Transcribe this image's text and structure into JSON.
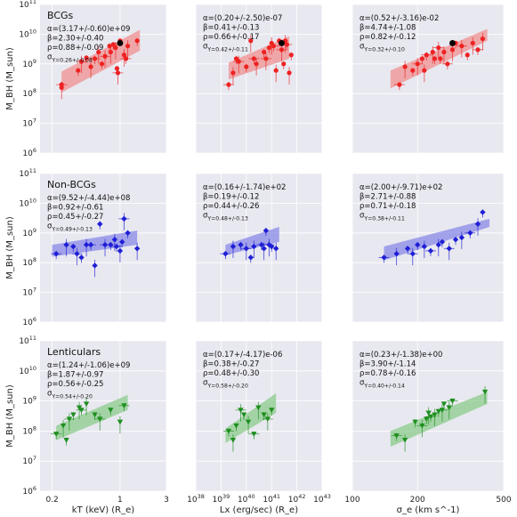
{
  "rows": [
    {
      "label": "BCGs",
      "ylabel": "M_BH (M_sun)",
      "color": "#ee2222",
      "band": "#f09090",
      "marker": "circle"
    },
    {
      "label": "Non-BCGs",
      "ylabel": "M_BH (M_sun)",
      "color": "#1f1fd6",
      "band": "#8a8ae8",
      "marker": "diamond"
    },
    {
      "label": "Lenticulars",
      "ylabel": "M_BH (M_sun)",
      "color": "#1f8f1f",
      "band": "#8ccc8c",
      "marker": "triangle"
    }
  ],
  "columns": [
    {
      "xlabel": "kT (keV) (R_e)",
      "scale": "log",
      "xlim": [
        0.15,
        3
      ],
      "ticks": [
        {
          "v": 0.2,
          "t": "0.2"
        },
        {
          "v": 1,
          "t": "1"
        },
        {
          "v": 3,
          "t": "3"
        }
      ]
    },
    {
      "xlabel": "Lx (erg/sec) (R_e)",
      "scale": "log",
      "xlim": [
        1e+38,
        1e+43
      ],
      "ticks": [
        {
          "v": 1e+38,
          "t": "10^38"
        },
        {
          "v": 1e+39,
          "t": "10^39"
        },
        {
          "v": 1e+40,
          "t": "10^40"
        },
        {
          "v": 1e+41,
          "t": "10^41"
        },
        {
          "v": 1e+42,
          "t": "10^42"
        },
        {
          "v": 1e+43,
          "t": "10^43"
        }
      ]
    },
    {
      "xlabel": "σ_e (km s^-1)",
      "scale": "log",
      "xlim": [
        100,
        500
      ],
      "ticks": [
        {
          "v": 100,
          "t": "100"
        },
        {
          "v": 200,
          "t": "200"
        },
        {
          "v": 500,
          "t": "500"
        }
      ]
    }
  ],
  "y_axis": {
    "scale": "log",
    "ylim": [
      1000000.0,
      100000000000.0
    ],
    "ticks": [
      {
        "v": 1000000.0,
        "t": "10^6"
      },
      {
        "v": 10000000.0,
        "t": "10^7"
      },
      {
        "v": 100000000.0,
        "t": "10^8"
      },
      {
        "v": 1000000000.0,
        "t": "10^9"
      },
      {
        "v": 10000000000.0,
        "t": "10^10"
      },
      {
        "v": 100000000000.0,
        "t": "10^11"
      }
    ]
  },
  "chart_data": [
    {
      "type": "scatter",
      "row": 0,
      "col": 0,
      "annotations": [
        "α=(3.17+/-0.60)e+09",
        "β=2.30+/-0.40",
        "ρ=0.88+/-0.09",
        "σ_Y=0.26+/-0.08"
      ],
      "fit": {
        "x": [
          0.25,
          1.6
        ],
        "y_lo": [
          110000000.0,
          2800000000.0
        ],
        "y_hi": [
          550000000.0,
          14000000000.0
        ]
      },
      "points": [
        [
          0.25,
          200000000.0
        ],
        [
          0.25,
          160000000.0
        ],
        [
          0.37,
          600000000.0
        ],
        [
          0.4,
          1200000000.0
        ],
        [
          0.45,
          1600000000.0
        ],
        [
          0.5,
          800000000.0
        ],
        [
          0.55,
          1500000000.0
        ],
        [
          0.6,
          2500000000.0
        ],
        [
          0.65,
          1000000000.0
        ],
        [
          0.7,
          1800000000.0
        ],
        [
          0.78,
          4000000000.0
        ],
        [
          0.8,
          2500000000.0
        ],
        [
          0.85,
          4500000000.0
        ],
        [
          0.9,
          3500000000.0
        ],
        [
          0.93,
          700000000.0
        ],
        [
          0.95,
          500000000.0
        ],
        [
          1.0,
          6000000000.0
        ],
        [
          1.1,
          2000000000.0
        ],
        [
          1.15,
          1500000000.0
        ],
        [
          1.2,
          4000000000.0
        ],
        [
          1.5,
          6000000000.0
        ]
      ],
      "highlight": [
        [
          1.0,
          5000000000.0
        ]
      ]
    },
    {
      "type": "scatter",
      "row": 0,
      "col": 1,
      "annotations": [
        "α=(0.20+/-2.50)e-07",
        "β=0.41+/-0.13",
        "ρ=0.66+/-0.17",
        "σ_Y=0.42+/-0.11"
      ],
      "fit": {
        "x": [
          2e+39,
          5e+41
        ],
        "y_lo": [
          300000000.0,
          1500000000.0
        ],
        "y_hi": [
          1100000000.0,
          8500000000.0
        ]
      },
      "points": [
        [
          2e+39,
          200000000.0
        ],
        [
          3e+39,
          500000000.0
        ],
        [
          4e+39,
          1500000000.0
        ],
        [
          5e+39,
          1200000000.0
        ],
        [
          1e+40,
          800000000.0
        ],
        [
          1.5e+40,
          6000000000.0
        ],
        [
          2e+40,
          1500000000.0
        ],
        [
          2.5e+40,
          1000000000.0
        ],
        [
          5e+40,
          2500000000.0
        ],
        [
          6e+40,
          1500000000.0
        ],
        [
          8e+40,
          3500000000.0
        ],
        [
          1e+41,
          5000000000.0
        ],
        [
          1.2e+41,
          4000000000.0
        ],
        [
          1.5e+41,
          600000000.0
        ],
        [
          2e+41,
          6000000000.0
        ],
        [
          2.5e+41,
          3000000000.0
        ],
        [
          3e+41,
          1000000000.0
        ],
        [
          3.5e+41,
          6000000000.0
        ],
        [
          4e+41,
          4500000000.0
        ],
        [
          5e+41,
          500000000.0
        ],
        [
          6e+41,
          2000000000.0
        ]
      ],
      "highlight": [
        [
          2.5e+41,
          5000000000.0
        ]
      ]
    },
    {
      "type": "scatter",
      "row": 0,
      "col": 2,
      "annotations": [
        "α=(0.52+/-3.16)e-02",
        "β=4.74+/-1.08",
        "ρ=0.82+/-0.12",
        "σ_Y=0.32+/-0.10"
      ],
      "fit": {
        "x": [
          150,
          420
        ],
        "y_lo": [
          150000000.0,
          6000000000.0
        ],
        "y_hi": [
          600000000.0,
          15000000000.0
        ]
      },
      "points": [
        [
          165,
          200000000.0
        ],
        [
          175,
          800000000.0
        ],
        [
          190,
          600000000.0
        ],
        [
          200,
          1000000000.0
        ],
        [
          210,
          1500000000.0
        ],
        [
          215,
          600000000.0
        ],
        [
          220,
          2000000000.0
        ],
        [
          235,
          2500000000.0
        ],
        [
          240,
          1500000000.0
        ],
        [
          250,
          3500000000.0
        ],
        [
          255,
          1500000000.0
        ],
        [
          265,
          2500000000.0
        ],
        [
          275,
          1000000000.0
        ],
        [
          290,
          3000000000.0
        ],
        [
          300,
          5000000000.0
        ],
        [
          320,
          4000000000.0
        ],
        [
          340,
          2000000000.0
        ],
        [
          360,
          5000000000.0
        ],
        [
          380,
          3000000000.0
        ],
        [
          400,
          7000000000.0
        ]
      ],
      "highlight": [
        [
          290,
          5000000000.0
        ]
      ]
    },
    {
      "type": "scatter",
      "row": 1,
      "col": 0,
      "annotations": [
        "α=(9.52+/-4.44)e+08",
        "β=0.92+/-0.61",
        "ρ=0.45+/-0.27",
        "σ_Y=0.49+/-0.13"
      ],
      "fit": {
        "x": [
          0.2,
          1.5
        ],
        "y_lo": [
          160000000.0,
          400000000.0
        ],
        "y_hi": [
          400000000.0,
          1200000000.0
        ]
      },
      "points": [
        [
          0.22,
          200000000.0
        ],
        [
          0.28,
          400000000.0
        ],
        [
          0.33,
          350000000.0
        ],
        [
          0.36,
          200000000.0
        ],
        [
          0.4,
          150000000.0
        ],
        [
          0.45,
          400000000.0
        ],
        [
          0.5,
          400000000.0
        ],
        [
          0.55,
          80000000.0
        ],
        [
          0.62,
          2000000000.0
        ],
        [
          0.7,
          400000000.0
        ],
        [
          0.8,
          400000000.0
        ],
        [
          0.88,
          600000000.0
        ],
        [
          0.92,
          350000000.0
        ],
        [
          1.0,
          250000000.0
        ],
        [
          1.05,
          500000000.0
        ],
        [
          1.1,
          3000000000.0
        ],
        [
          1.2,
          1000000000.0
        ],
        [
          1.5,
          300000000.0
        ]
      ]
    },
    {
      "type": "scatter",
      "row": 1,
      "col": 1,
      "annotations": [
        "α=(0.16+/-1.74)e+02",
        "β=0.19+/-0.12",
        "ρ=0.44+/-0.26",
        "σ_Y=0.48+/-0.13"
      ],
      "fit": {
        "x": [
          1.5e+39,
          2e+41
        ],
        "y_lo": [
          180000000.0,
          500000000.0
        ],
        "y_hi": [
          400000000.0,
          1600000000.0
        ]
      },
      "points": [
        [
          1.5e+39,
          200000000.0
        ],
        [
          3e+39,
          350000000.0
        ],
        [
          6e+39,
          400000000.0
        ],
        [
          1e+40,
          300000000.0
        ],
        [
          1.5e+40,
          150000000.0
        ],
        [
          2e+40,
          350000000.0
        ],
        [
          4e+40,
          400000000.0
        ],
        [
          5e+40,
          300000000.0
        ],
        [
          6e+40,
          1200000000.0
        ],
        [
          8e+40,
          400000000.0
        ],
        [
          1e+41,
          350000000.0
        ],
        [
          1.5e+41,
          300000000.0
        ]
      ]
    },
    {
      "type": "scatter",
      "row": 1,
      "col": 2,
      "annotations": [
        "α=(2.00+/-9.71)e+02",
        "β=2.71+/-0.88",
        "ρ=0.71+/-0.18",
        "σ_Y=0.38+/-0.11"
      ],
      "fit": {
        "x": [
          140,
          430
        ],
        "y_lo": [
          120000000.0,
          1600000000.0
        ],
        "y_hi": [
          350000000.0,
          3000000000.0
        ]
      },
      "points": [
        [
          140,
          150000000.0
        ],
        [
          160,
          200000000.0
        ],
        [
          180,
          300000000.0
        ],
        [
          190,
          200000000.0
        ],
        [
          200,
          400000000.0
        ],
        [
          215,
          350000000.0
        ],
        [
          230,
          250000000.0
        ],
        [
          250,
          400000000.0
        ],
        [
          260,
          500000000.0
        ],
        [
          280,
          300000000.0
        ],
        [
          300,
          600000000.0
        ],
        [
          320,
          700000000.0
        ],
        [
          350,
          1000000000.0
        ],
        [
          380,
          2000000000.0
        ],
        [
          400,
          5000000000.0
        ]
      ]
    },
    {
      "type": "scatter",
      "row": 2,
      "col": 0,
      "annotations": [
        "α=(1.24+/-1.06)e+09",
        "β=1.87+/-0.97",
        "ρ=0.56+/-0.25",
        "σ_Y=0.54+/-0.20"
      ],
      "fit": {
        "x": [
          0.22,
          1.2
        ],
        "y_lo": [
          50000000.0,
          500000000.0
        ],
        "y_hi": [
          150000000.0,
          1600000000.0
        ]
      },
      "points": [
        [
          0.22,
          80000000.0
        ],
        [
          0.26,
          150000000.0
        ],
        [
          0.28,
          50000000.0
        ],
        [
          0.3,
          250000000.0
        ],
        [
          0.33,
          350000000.0
        ],
        [
          0.38,
          600000000.0
        ],
        [
          0.4,
          500000000.0
        ],
        [
          0.45,
          800000000.0
        ],
        [
          0.55,
          350000000.0
        ],
        [
          0.62,
          250000000.0
        ],
        [
          0.8,
          500000000.0
        ],
        [
          1.0,
          200000000.0
        ],
        [
          1.1,
          700000000.0
        ]
      ]
    },
    {
      "type": "scatter",
      "row": 2,
      "col": 1,
      "annotations": [
        "α=(0.17+/-4.17)e-06",
        "β=0.38+/-0.27",
        "ρ=0.48+/-0.30",
        "σ_Y=0.58+/-0.20"
      ],
      "fit": {
        "x": [
          1.5e+39,
          1.5e+41
        ],
        "y_lo": [
          40000000.0,
          400000000.0
        ],
        "y_hi": [
          120000000.0,
          1800000000.0
        ]
      },
      "points": [
        [
          2e+39,
          100000000.0
        ],
        [
          3e+39,
          50000000.0
        ],
        [
          4e+39,
          150000000.0
        ],
        [
          6e+39,
          500000000.0
        ],
        [
          8e+39,
          350000000.0
        ],
        [
          1.2e+40,
          200000000.0
        ],
        [
          2e+40,
          80000000.0
        ],
        [
          3e+40,
          600000000.0
        ],
        [
          5e+40,
          350000000.0
        ],
        [
          7e+40,
          250000000.0
        ],
        [
          1e+41,
          500000000.0
        ]
      ]
    },
    {
      "type": "scatter",
      "row": 2,
      "col": 2,
      "annotations": [
        "α=(0.23+/-1.38)e+00",
        "β=3.90+/-1.14",
        "ρ=0.78+/-0.16",
        "σ_Y=0.40+/-0.14"
      ],
      "fit": {
        "x": [
          150,
          420
        ],
        "y_lo": [
          30000000.0,
          800000000.0
        ],
        "y_hi": [
          100000000.0,
          2000000000.0
        ]
      },
      "points": [
        [
          160,
          70000000.0
        ],
        [
          175,
          50000000.0
        ],
        [
          195,
          200000000.0
        ],
        [
          210,
          150000000.0
        ],
        [
          220,
          250000000.0
        ],
        [
          225,
          400000000.0
        ],
        [
          230,
          300000000.0
        ],
        [
          240,
          350000000.0
        ],
        [
          250,
          450000000.0
        ],
        [
          260,
          500000000.0
        ],
        [
          265,
          800000000.0
        ],
        [
          280,
          600000000.0
        ],
        [
          290,
          1000000000.0
        ],
        [
          410,
          2000000000.0
        ]
      ]
    }
  ]
}
